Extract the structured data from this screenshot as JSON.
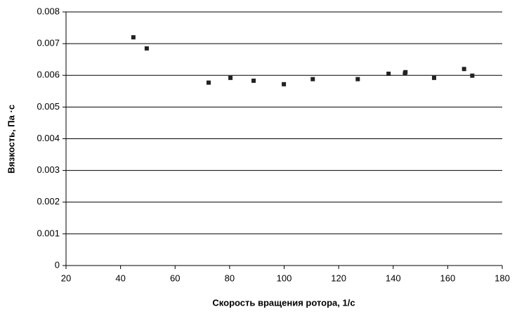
{
  "chart_data": {
    "type": "scatter",
    "x_label": "Скорость вращения ротора, 1/с",
    "y_label": "Вязкость, Па ·с",
    "series": [
      {
        "color": "#222222",
        "x": [
          44.7,
          49.6,
          72.3,
          80.3,
          88.8,
          99.9,
          110.5,
          127,
          138.3,
          144.3,
          144.5,
          155,
          166,
          169
        ],
        "values": [
          0.0072,
          0.00685,
          0.00577,
          0.00592,
          0.00583,
          0.00572,
          0.00588,
          0.00588,
          0.00605,
          0.00606,
          0.0061,
          0.00592,
          0.0062,
          0.00599
        ]
      }
    ],
    "xlim": [
      20,
      180
    ],
    "xticks": [
      20,
      40,
      60,
      80,
      100,
      120,
      140,
      160,
      180
    ],
    "ylim": [
      0,
      0.008
    ],
    "yticks": [
      0,
      0.001,
      0.002,
      0.003,
      0.004,
      0.005,
      0.006,
      0.007,
      0.008
    ],
    "grid": true
  }
}
